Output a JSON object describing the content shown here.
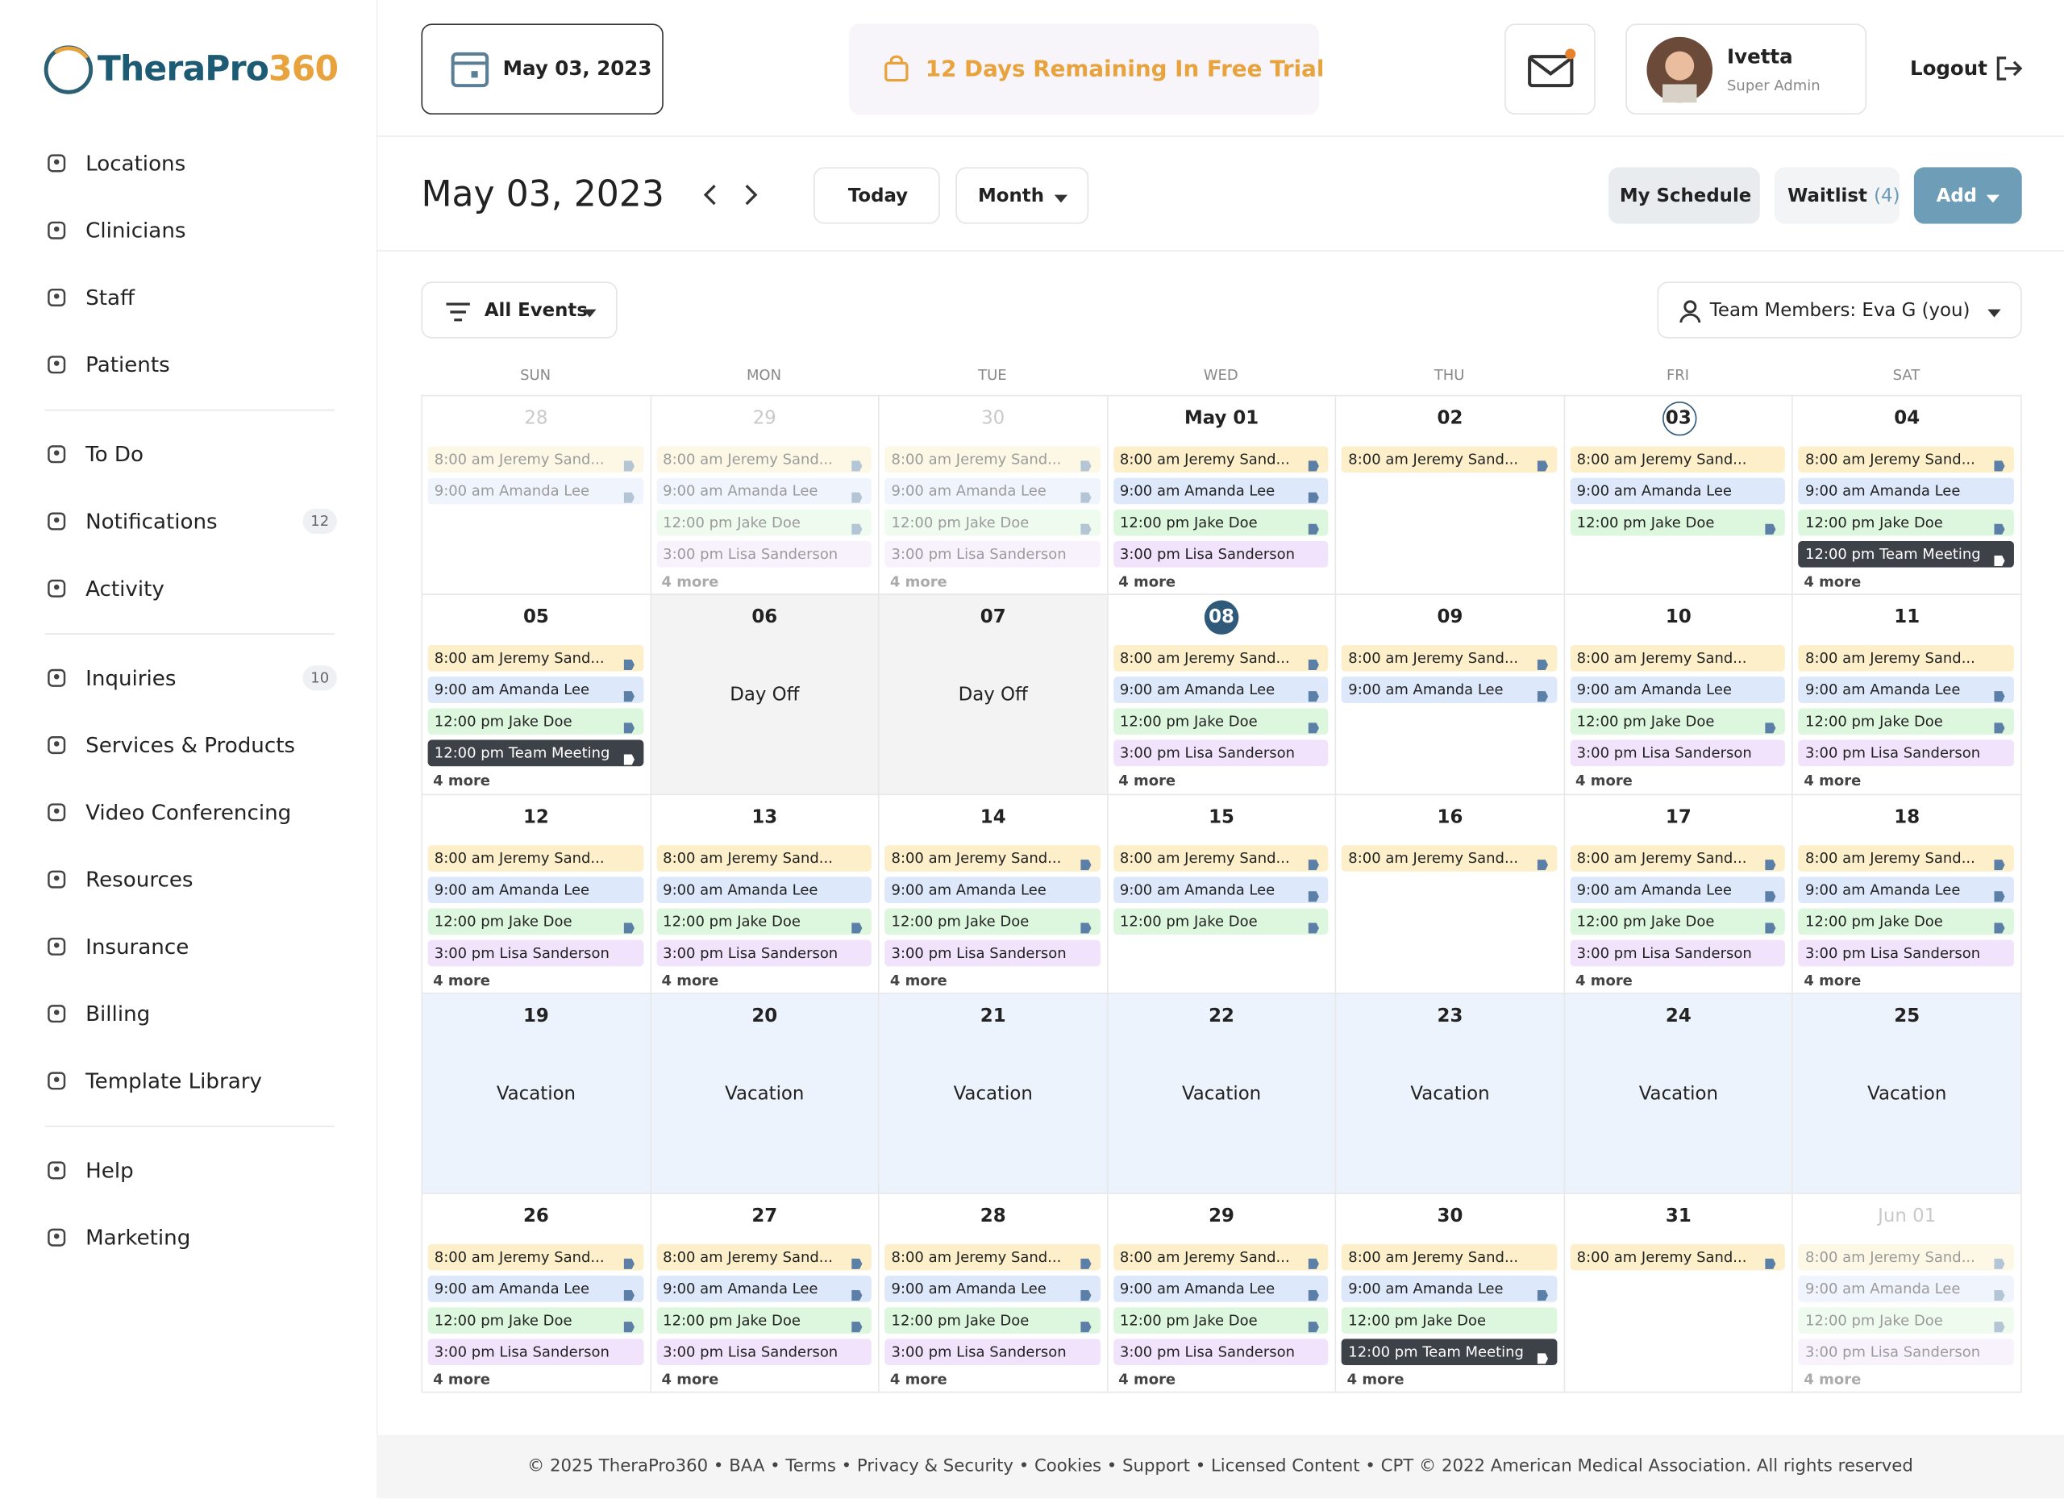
{
  "sidebar": {
    "logo": [
      "TheraPro",
      "360"
    ],
    "groups": [
      [
        {
          "label": "Locations"
        },
        {
          "label": "Clinicians"
        },
        {
          "label": "Staff"
        },
        {
          "label": "Patients"
        }
      ],
      [
        {
          "label": "To Do"
        },
        {
          "label": "Notifications",
          "badge": 12
        },
        {
          "label": "Activity"
        }
      ],
      [
        {
          "label": "Inquiries",
          "badge": 10
        },
        {
          "label": "Services & Products"
        },
        {
          "label": "Video Conferencing"
        },
        {
          "label": "Resources"
        },
        {
          "label": "Insurance"
        },
        {
          "label": "Billing"
        },
        {
          "label": "Template Library"
        }
      ],
      [
        {
          "label": "Help"
        },
        {
          "label": "Marketing"
        }
      ]
    ]
  },
  "header": {
    "date": "May 03, 2023",
    "trial": "12 Days Remaining In Free Trial",
    "user": "Ivetta",
    "role": "Super Admin",
    "logout": "Logout"
  },
  "toolbar": {
    "title": "May 03, 2023",
    "today": "Today",
    "view": "Month",
    "my_schedule": "My Schedule",
    "waitlist": "Waitlist",
    "waitlist_count": "(4)",
    "add": "Add",
    "filter": "All Events",
    "team": "Team Members: Eva G (you)"
  },
  "calendar": {
    "weekdays": [
      "SUN",
      "MON",
      "TUE",
      "WED",
      "THU",
      "FRI",
      "SAT"
    ],
    "weeks": [
      [
        {
          "label": "28",
          "muted": true,
          "events": [
            [
              "8:00 am Jeremy Sand...",
              "#fcefc9",
              true
            ],
            [
              "9:00 am Amanda Lee",
              "#dde8fb",
              true
            ]
          ]
        },
        {
          "label": "29",
          "muted": true,
          "events": [
            [
              "8:00 am Jeremy Sand...",
              "#fcefc9",
              true
            ],
            [
              "9:00 am Amanda Lee",
              "#dde8fb",
              true
            ],
            [
              "12:00 pm Jake Doe",
              "#dcf7dd",
              true
            ],
            [
              "3:00 pm Lisa Sanderson",
              "#f1e3fb",
              false
            ]
          ],
          "more": "4 more"
        },
        {
          "label": "30",
          "muted": true,
          "events": [
            [
              "8:00 am Jeremy Sand...",
              "#fcefc9",
              true
            ],
            [
              "9:00 am Amanda Lee",
              "#dde8fb",
              true
            ],
            [
              "12:00 pm Jake Doe",
              "#dcf7dd",
              true
            ],
            [
              "3:00 pm Lisa Sanderson",
              "#f1e3fb",
              false
            ]
          ],
          "more": "4 more"
        },
        {
          "label": "May 01",
          "events": [
            [
              "8:00 am Jeremy Sand...",
              "#fcefc9",
              true
            ],
            [
              "9:00 am Amanda Lee",
              "#dde8fb",
              true
            ],
            [
              "12:00 pm Jake Doe",
              "#dcf7dd",
              true
            ],
            [
              "3:00 pm Lisa Sanderson",
              "#f1e3fb",
              false
            ]
          ],
          "more": "4 more"
        },
        {
          "label": "02",
          "events": [
            [
              "8:00 am Jeremy Sand...",
              "#fcefc9",
              true
            ]
          ]
        },
        {
          "label": "03",
          "selected": true,
          "events": [
            [
              "8:00 am Jeremy Sand...",
              "#fcefc9",
              false
            ],
            [
              "9:00 am Amanda Lee",
              "#dde8fb",
              false
            ],
            [
              "12:00 pm Jake Doe",
              "#dcf7dd",
              true
            ]
          ]
        },
        {
          "label": "04",
          "events": [
            [
              "8:00 am Jeremy Sand...",
              "#fcefc9",
              true
            ],
            [
              "9:00 am Amanda Lee",
              "#dde8fb",
              false
            ],
            [
              "12:00 pm Jake Doe",
              "#dcf7dd",
              true
            ],
            [
              "12:00 pm Team Meeting",
              "#3d4148",
              true
            ]
          ],
          "more": "4 more"
        }
      ],
      [
        {
          "label": "05",
          "events": [
            [
              "8:00 am Jeremy Sand...",
              "#fcefc9",
              true
            ],
            [
              "9:00 am Amanda Lee",
              "#dde8fb",
              true
            ],
            [
              "12:00 pm Jake Doe",
              "#dcf7dd",
              true
            ],
            [
              "12:00 pm Team Meeting",
              "#3d4148",
              true
            ]
          ],
          "more": "4 more"
        },
        {
          "label": "06",
          "note": "Day Off",
          "bg": "#f3f3f3"
        },
        {
          "label": "07",
          "note": "Day Off",
          "bg": "#f3f3f3"
        },
        {
          "label": "08",
          "today": true,
          "events": [
            [
              "8:00 am Jeremy Sand...",
              "#fcefc9",
              true
            ],
            [
              "9:00 am Amanda Lee",
              "#dde8fb",
              true
            ],
            [
              "12:00 pm Jake Doe",
              "#dcf7dd",
              true
            ],
            [
              "3:00 pm Lisa Sanderson",
              "#f1e3fb",
              false
            ]
          ],
          "more": "4 more"
        },
        {
          "label": "09",
          "events": [
            [
              "8:00 am Jeremy Sand...",
              "#fcefc9",
              true
            ],
            [
              "9:00 am Amanda Lee",
              "#dde8fb",
              true
            ]
          ]
        },
        {
          "label": "10",
          "events": [
            [
              "8:00 am Jeremy Sand...",
              "#fcefc9",
              false
            ],
            [
              "9:00 am Amanda Lee",
              "#dde8fb",
              false
            ],
            [
              "12:00 pm Jake Doe",
              "#dcf7dd",
              true
            ],
            [
              "3:00 pm Lisa Sanderson",
              "#f1e3fb",
              false
            ]
          ],
          "more": "4 more"
        },
        {
          "label": "11",
          "events": [
            [
              "8:00 am Jeremy Sand...",
              "#fcefc9",
              false
            ],
            [
              "9:00 am Amanda Lee",
              "#dde8fb",
              true
            ],
            [
              "12:00 pm Jake Doe",
              "#dcf7dd",
              true
            ],
            [
              "3:00 pm Lisa Sanderson",
              "#f1e3fb",
              false
            ]
          ],
          "more": "4 more"
        }
      ],
      [
        {
          "label": "12",
          "events": [
            [
              "8:00 am Jeremy Sand...",
              "#fcefc9",
              false
            ],
            [
              "9:00 am Amanda Lee",
              "#dde8fb",
              false
            ],
            [
              "12:00 pm Jake Doe",
              "#dcf7dd",
              true
            ],
            [
              "3:00 pm Lisa Sanderson",
              "#f1e3fb",
              false
            ]
          ],
          "more": "4 more"
        },
        {
          "label": "13",
          "events": [
            [
              "8:00 am Jeremy Sand...",
              "#fcefc9",
              false
            ],
            [
              "9:00 am Amanda Lee",
              "#dde8fb",
              false
            ],
            [
              "12:00 pm Jake Doe",
              "#dcf7dd",
              true
            ],
            [
              "3:00 pm Lisa Sanderson",
              "#f1e3fb",
              false
            ]
          ],
          "more": "4 more"
        },
        {
          "label": "14",
          "events": [
            [
              "8:00 am Jeremy Sand...",
              "#fcefc9",
              true
            ],
            [
              "9:00 am Amanda Lee",
              "#dde8fb",
              false
            ],
            [
              "12:00 pm Jake Doe",
              "#dcf7dd",
              true
            ],
            [
              "3:00 pm Lisa Sanderson",
              "#f1e3fb",
              false
            ]
          ],
          "more": "4 more"
        },
        {
          "label": "15",
          "events": [
            [
              "8:00 am Jeremy Sand...",
              "#fcefc9",
              true
            ],
            [
              "9:00 am Amanda Lee",
              "#dde8fb",
              true
            ],
            [
              "12:00 pm Jake Doe",
              "#dcf7dd",
              true
            ]
          ]
        },
        {
          "label": "16",
          "events": [
            [
              "8:00 am Jeremy Sand...",
              "#fcefc9",
              true
            ]
          ]
        },
        {
          "label": "17",
          "events": [
            [
              "8:00 am Jeremy Sand...",
              "#fcefc9",
              true
            ],
            [
              "9:00 am Amanda Lee",
              "#dde8fb",
              true
            ],
            [
              "12:00 pm Jake Doe",
              "#dcf7dd",
              true
            ],
            [
              "3:00 pm Lisa Sanderson",
              "#f1e3fb",
              false
            ]
          ],
          "more": "4 more"
        },
        {
          "label": "18",
          "events": [
            [
              "8:00 am Jeremy Sand...",
              "#fcefc9",
              true
            ],
            [
              "9:00 am Amanda Lee",
              "#dde8fb",
              true
            ],
            [
              "12:00 pm Jake Doe",
              "#dcf7dd",
              true
            ],
            [
              "3:00 pm Lisa Sanderson",
              "#f1e3fb",
              false
            ]
          ],
          "more": "4 more"
        }
      ],
      [
        {
          "label": "19",
          "note": "Vacation",
          "bg": "#edf3fc"
        },
        {
          "label": "20",
          "note": "Vacation",
          "bg": "#edf3fc"
        },
        {
          "label": "21",
          "note": "Vacation",
          "bg": "#edf3fc"
        },
        {
          "label": "22",
          "note": "Vacation",
          "bg": "#edf3fc"
        },
        {
          "label": "23",
          "note": "Vacation",
          "bg": "#edf3fc"
        },
        {
          "label": "24",
          "note": "Vacation",
          "bg": "#edf3fc"
        },
        {
          "label": "25",
          "note": "Vacation",
          "bg": "#edf3fc"
        }
      ],
      [
        {
          "label": "26",
          "events": [
            [
              "8:00 am Jeremy Sand...",
              "#fcefc9",
              true
            ],
            [
              "9:00 am Amanda Lee",
              "#dde8fb",
              true
            ],
            [
              "12:00 pm Jake Doe",
              "#dcf7dd",
              true
            ],
            [
              "3:00 pm Lisa Sanderson",
              "#f1e3fb",
              false
            ]
          ],
          "more": "4 more"
        },
        {
          "label": "27",
          "events": [
            [
              "8:00 am Jeremy Sand...",
              "#fcefc9",
              true
            ],
            [
              "9:00 am Amanda Lee",
              "#dde8fb",
              true
            ],
            [
              "12:00 pm Jake Doe",
              "#dcf7dd",
              true
            ],
            [
              "3:00 pm Lisa Sanderson",
              "#f1e3fb",
              false
            ]
          ],
          "more": "4 more"
        },
        {
          "label": "28",
          "events": [
            [
              "8:00 am Jeremy Sand...",
              "#fcefc9",
              true
            ],
            [
              "9:00 am Amanda Lee",
              "#dde8fb",
              true
            ],
            [
              "12:00 pm Jake Doe",
              "#dcf7dd",
              true
            ],
            [
              "3:00 pm Lisa Sanderson",
              "#f1e3fb",
              false
            ]
          ],
          "more": "4 more"
        },
        {
          "label": "29",
          "events": [
            [
              "8:00 am Jeremy Sand...",
              "#fcefc9",
              true
            ],
            [
              "9:00 am Amanda Lee",
              "#dde8fb",
              true
            ],
            [
              "12:00 pm Jake Doe",
              "#dcf7dd",
              true
            ],
            [
              "3:00 pm Lisa Sanderson",
              "#f1e3fb",
              false
            ]
          ],
          "more": "4 more"
        },
        {
          "label": "30",
          "events": [
            [
              "8:00 am Jeremy Sand...",
              "#fcefc9",
              false
            ],
            [
              "9:00 am Amanda Lee",
              "#dde8fb",
              true
            ],
            [
              "12:00 pm Jake Doe",
              "#dcf7dd",
              false
            ],
            [
              "12:00 pm Team Meeting",
              "#3d4148",
              true
            ]
          ],
          "more": "4 more"
        },
        {
          "label": "31",
          "events": [
            [
              "8:00 am Jeremy Sand...",
              "#fcefc9",
              true
            ]
          ]
        },
        {
          "label": "Jun 01",
          "muted": true,
          "events": [
            [
              "8:00 am Jeremy Sand...",
              "#fcefc9",
              true
            ],
            [
              "9:00 am Amanda Lee",
              "#dde8fb",
              true
            ],
            [
              "12:00 pm Jake Doe",
              "#dcf7dd",
              true
            ],
            [
              "3:00 pm Lisa Sanderson",
              "#f1e3fb",
              false
            ]
          ],
          "more": "4 more"
        }
      ]
    ]
  },
  "footer": "© 2025 TheraPro360 • BAA • Terms • Privacy & Security • Cookies • Support • Licensed Content • CPT © 2022 American Medical Association. All rights reserved"
}
